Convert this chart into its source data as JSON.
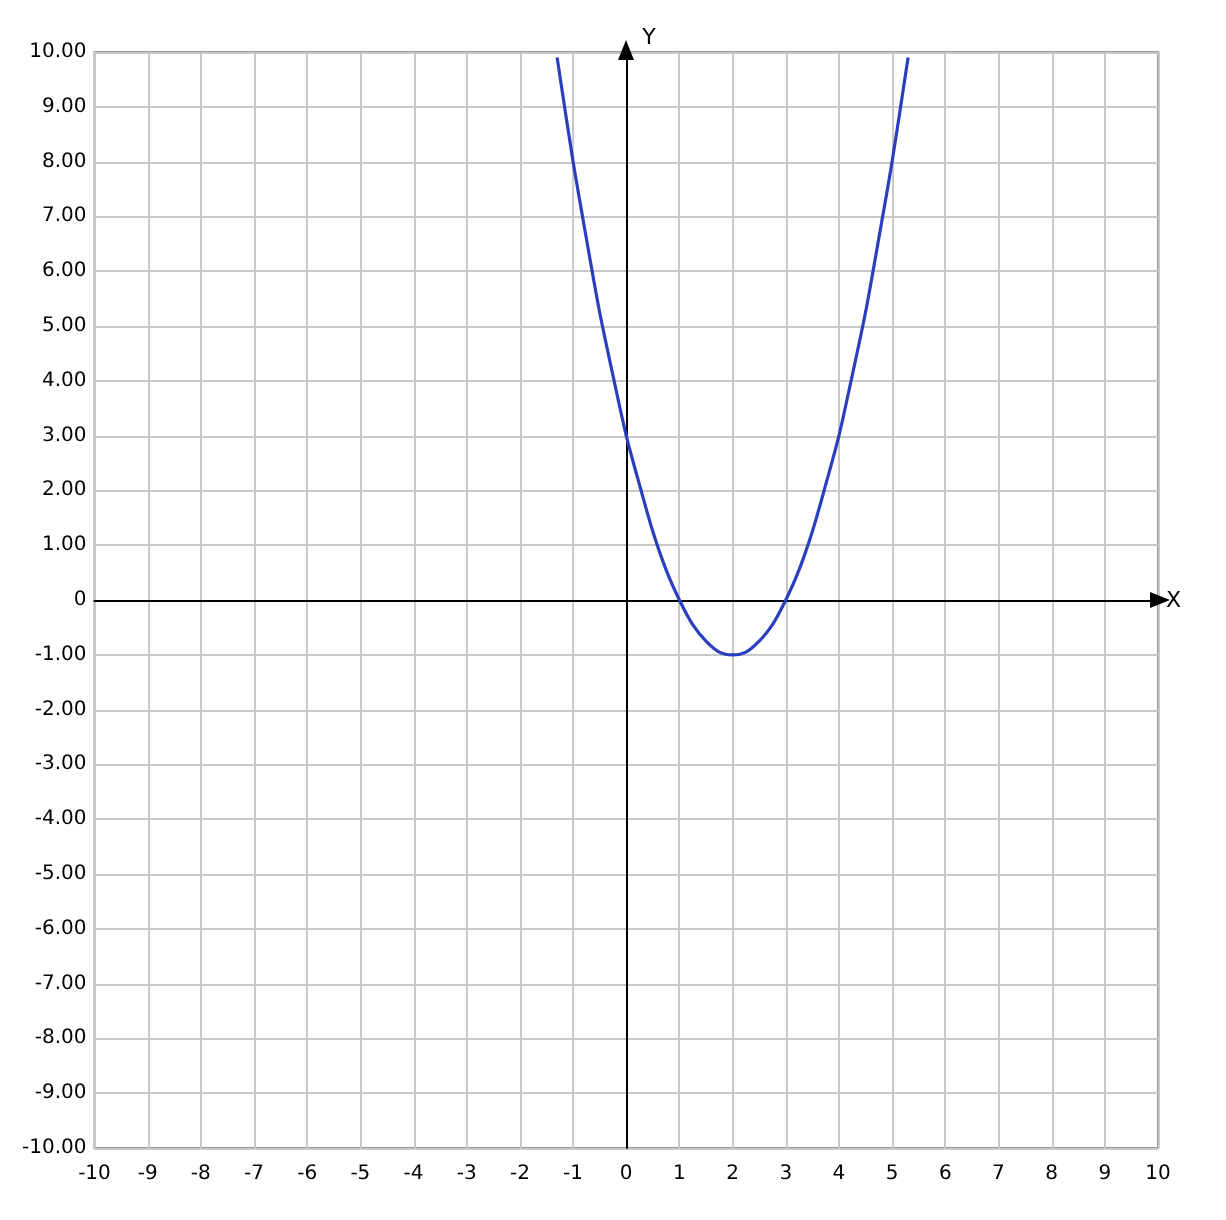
{
  "chart_data": {
    "type": "line",
    "xlabel": "X",
    "ylabel": "Y",
    "x": [
      -1.3,
      -1,
      -0.75,
      -0.5,
      -0.25,
      0,
      0.25,
      0.5,
      0.75,
      1,
      1.25,
      1.5,
      1.75,
      2,
      2.25,
      2.5,
      2.75,
      3,
      3.25,
      3.5,
      3.75,
      4,
      4.25,
      4.5,
      4.75,
      5,
      5.3
    ],
    "series": [
      {
        "color": "#2a3fbf",
        "values": [
          9.9,
          8,
          6.6,
          5.25,
          4.1,
          3,
          2.1,
          1.25,
          0.55,
          0,
          -0.45,
          -0.75,
          -0.95,
          -1,
          -0.95,
          -0.75,
          -0.45,
          0,
          0.55,
          1.25,
          2.1,
          3,
          4.1,
          5.25,
          6.6,
          8,
          9.9
        ]
      }
    ],
    "xlim": [
      -10,
      10
    ],
    "ylim": [
      -10,
      10
    ],
    "xticks": [
      -10,
      -9,
      -8,
      -7,
      -6,
      -5,
      -4,
      -3,
      -2,
      -1,
      0,
      1,
      2,
      3,
      4,
      5,
      6,
      7,
      8,
      9,
      10
    ],
    "yticks": [
      {
        "value": -10,
        "label": "-10.00"
      },
      {
        "value": -9,
        "label": "-9.00"
      },
      {
        "value": -8,
        "label": "-8.00"
      },
      {
        "value": -7,
        "label": "-7.00"
      },
      {
        "value": -6,
        "label": "-6.00"
      },
      {
        "value": -5,
        "label": "-5.00"
      },
      {
        "value": -4,
        "label": "-4.00"
      },
      {
        "value": -3,
        "label": "-3.00"
      },
      {
        "value": -2,
        "label": "-2.00"
      },
      {
        "value": -1,
        "label": "-1.00"
      },
      0,
      {
        "value": 1,
        "label": "1.00"
      },
      {
        "value": 2,
        "label": "2.00"
      },
      {
        "value": 3,
        "label": "3.00"
      },
      {
        "value": 4,
        "label": "4.00"
      },
      {
        "value": 5,
        "label": "5.00"
      },
      {
        "value": 6,
        "label": "6.00"
      },
      {
        "value": 7,
        "label": "7.00"
      },
      {
        "value": 8,
        "label": "8.00"
      },
      {
        "value": 9,
        "label": "9.00"
      },
      {
        "value": 10,
        "label": "10.00"
      }
    ],
    "grid": true,
    "marker": "none",
    "line_style": "solid"
  }
}
